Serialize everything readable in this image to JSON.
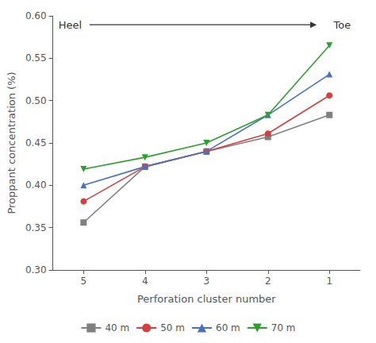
{
  "chart_data": {
    "type": "line",
    "x": [
      5,
      4,
      3,
      2,
      1
    ],
    "series": [
      {
        "name": "40 m",
        "color": "#808080",
        "marker": "square",
        "line_style": "solid",
        "values": [
          0.356,
          0.422,
          0.44,
          0.457,
          0.483
        ]
      },
      {
        "name": "50 m",
        "color": "#d43f3f",
        "marker": "circle",
        "line_style": "solid",
        "values": [
          0.381,
          0.422,
          0.44,
          0.461,
          0.506
        ]
      },
      {
        "name": "60 m",
        "color": "#4472c4",
        "marker": "triangle",
        "line_style": "solid",
        "values": [
          0.4,
          0.422,
          0.44,
          0.483,
          0.531
        ]
      },
      {
        "name": "70 m",
        "color": "#2ca02c",
        "marker": "triangle-down",
        "line_style": "solid",
        "values": [
          0.419,
          0.433,
          0.45,
          0.483,
          0.565
        ]
      }
    ],
    "xlabel": "Perforation cluster number",
    "ylabel": "Proppant concentration (%)",
    "xlim": [
      5.5,
      0.5
    ],
    "xticks": [
      5,
      4,
      3,
      2,
      1
    ],
    "ylim": [
      0.3,
      0.6
    ],
    "yticks": [
      {
        "value": 0.3,
        "label": "0.30"
      },
      0.35,
      {
        "value": 0.4,
        "label": "0.40"
      },
      0.45,
      {
        "value": 0.5,
        "label": "0.50"
      },
      0.55,
      {
        "value": 0.6,
        "label": "0.60"
      }
    ],
    "annotations": [
      "Heel",
      "Toe"
    ],
    "grid": false,
    "legend": "bottom"
  }
}
